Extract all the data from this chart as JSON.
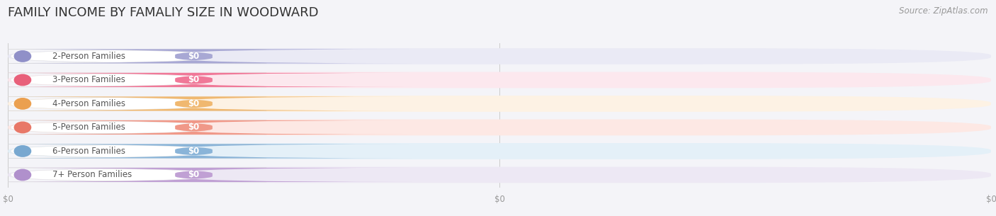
{
  "title": "FAMILY INCOME BY FAMALIY SIZE IN WOODWARD",
  "source": "Source: ZipAtlas.com",
  "categories": [
    "2-Person Families",
    "3-Person Families",
    "4-Person Families",
    "5-Person Families",
    "6-Person Families",
    "7+ Person Families"
  ],
  "values": [
    0,
    0,
    0,
    0,
    0,
    0
  ],
  "bar_colors": [
    "#a8a8d4",
    "#f07898",
    "#f0b870",
    "#f09888",
    "#8ab4d8",
    "#c0a0d4"
  ],
  "bar_bg_colors": [
    "#eaeaf5",
    "#fce8ee",
    "#fdf2e4",
    "#fde8e4",
    "#e4f0f8",
    "#ede8f4"
  ],
  "dot_colors": [
    "#9090c8",
    "#e8607a",
    "#eba050",
    "#e87868",
    "#78a8d0",
    "#b090cc"
  ],
  "background_color": "#f4f4f8",
  "title_fontsize": 13,
  "source_fontsize": 8.5,
  "label_fontsize": 8.5,
  "value_fontsize": 8.5,
  "tick_fontsize": 8.5,
  "tick_color": "#999999",
  "label_text_color": "#555555",
  "xtick_positions": [
    0.0,
    0.5,
    1.0
  ],
  "xtick_labels": [
    "$0",
    "$0",
    "$0"
  ]
}
